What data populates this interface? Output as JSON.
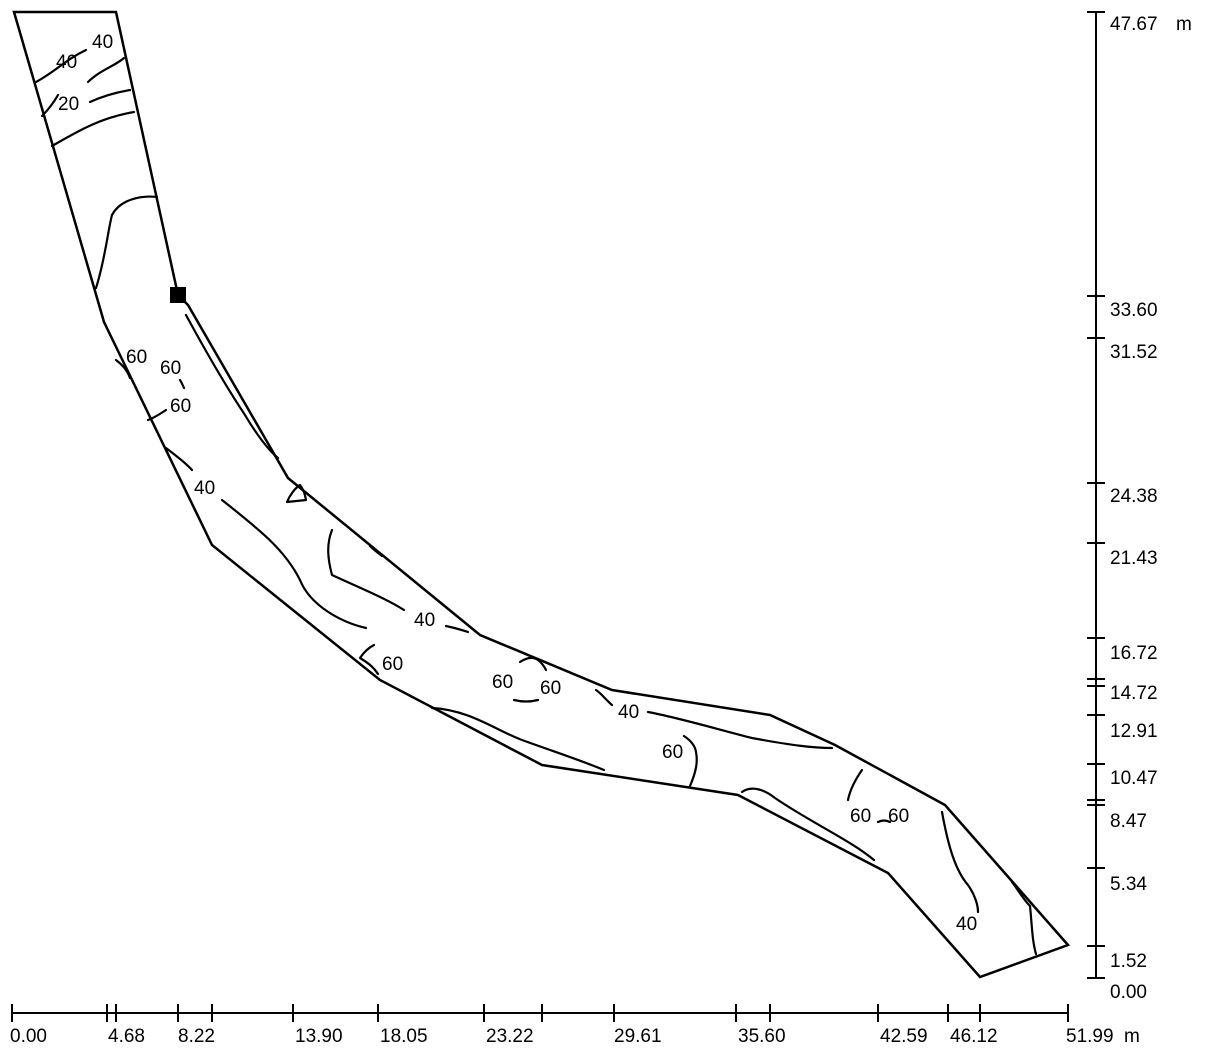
{
  "x_axis": {
    "unit": "m",
    "ticks": [
      "0.00",
      "4.68",
      "8.22",
      "13.90",
      "18.05",
      "23.22",
      "29.61",
      "35.60",
      "42.59",
      "46.12",
      "51.99"
    ]
  },
  "y_axis": {
    "unit": "m",
    "ticks": [
      "47.67",
      "33.60",
      "31.52",
      "24.38",
      "21.43",
      "16.72",
      "14.72",
      "12.91",
      "10.47",
      "8.47",
      "5.34",
      "1.52",
      "0.00"
    ]
  },
  "contour_labels": [
    "40",
    "40",
    "20",
    "60",
    "60",
    "60",
    "40",
    "40",
    "60",
    "60",
    "60",
    "40",
    "60",
    "60",
    "60",
    "40"
  ],
  "marker": {
    "name": "square-marker"
  }
}
